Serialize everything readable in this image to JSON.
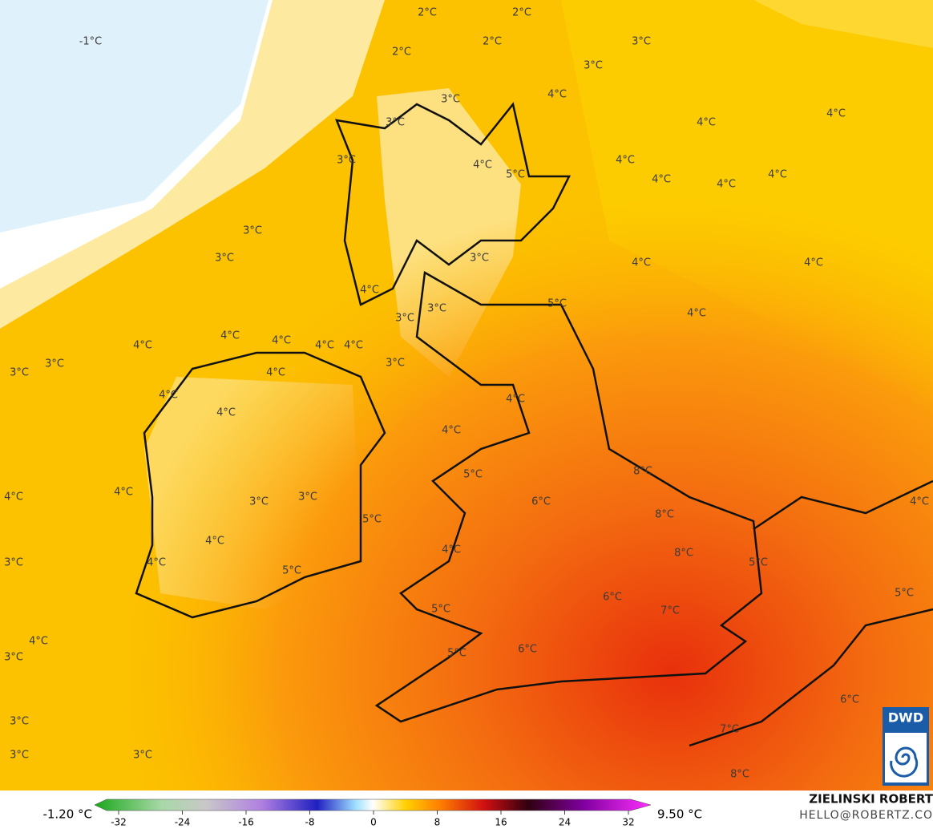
{
  "labels": [
    "2°C",
    "2°C",
    "-1°C",
    "2°C",
    "3°C",
    "2°C",
    "3°C",
    "4°C",
    "3°C",
    "4°C",
    "3°C",
    "4°C",
    "3°C",
    "4°C",
    "4°C",
    "5°C",
    "4°C",
    "4°C",
    "4°C",
    "3°C",
    "3°C",
    "3°C",
    "4°C",
    "4°C",
    "4°C",
    "5°C",
    "3°C",
    "4°C",
    "3°C",
    "4°C",
    "4°C",
    "4°C",
    "4°C",
    "4°C",
    "3°C",
    "3°C",
    "3°C",
    "4°C",
    "4°C",
    "4°C",
    "4°C",
    "4°C",
    "5°C",
    "8°C",
    "4°C",
    "4°C",
    "6°C",
    "3°C",
    "3°C",
    "8°C",
    "4°C",
    "5°C",
    "4°C",
    "4°C",
    "8°C",
    "3°C",
    "4°C",
    "5°C",
    "5°C",
    "6°C",
    "5°C",
    "7°C",
    "5°C",
    "4°C",
    "6°C",
    "3°C",
    "5°C",
    "6°C",
    "3°C",
    "7°C",
    "3°C",
    "3°C",
    "8°C"
  ],
  "colorbar": {
    "min_label": "-1.20 °C",
    "max_label": "9.50 °C",
    "ticks": [
      -32,
      -24,
      -16,
      -8,
      0,
      8,
      16,
      24,
      32
    ]
  },
  "credit": {
    "name": "ZIELINSKI ROBERT",
    "contact": "HELLO@ROBERTZ.CO",
    "logo": "DWD"
  }
}
